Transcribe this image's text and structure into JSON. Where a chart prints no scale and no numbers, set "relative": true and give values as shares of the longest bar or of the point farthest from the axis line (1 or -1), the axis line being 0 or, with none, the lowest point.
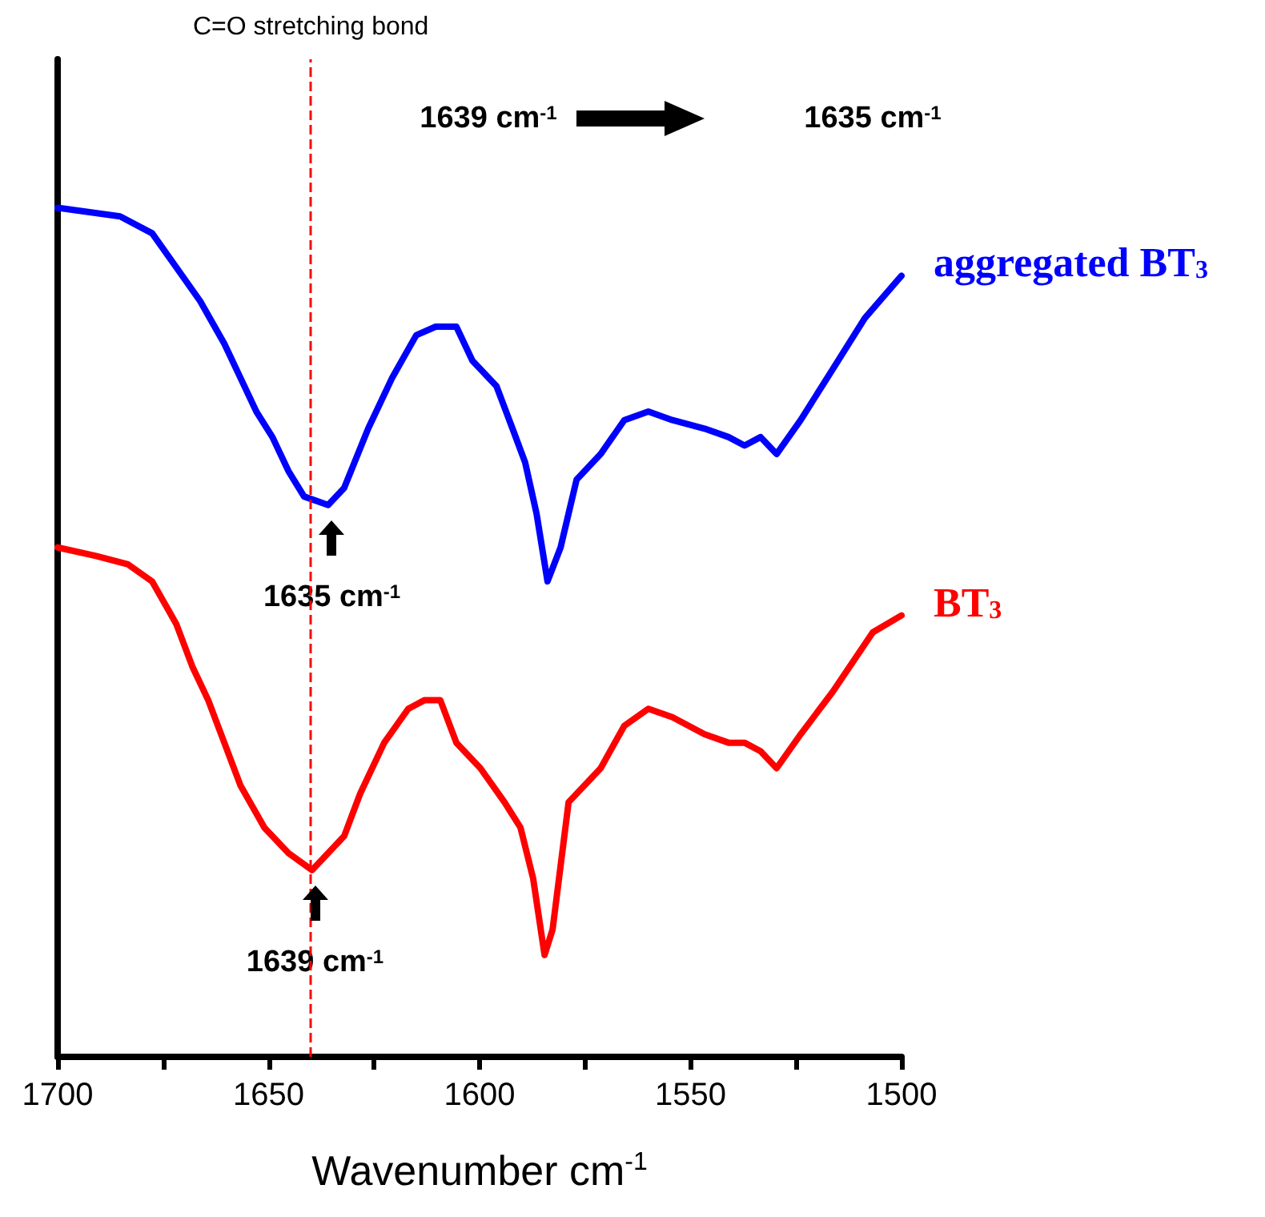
{
  "chart_data": {
    "type": "line",
    "relative": true,
    "xlabel": "Wavenumber cm$^{-1}$",
    "xlim": [
      1700,
      1500
    ],
    "xticks": [
      1700,
      {
        "value": 1675,
        "label": null
      },
      1650,
      {
        "value": 1625,
        "label": null
      },
      1600,
      {
        "value": 1575,
        "label": null
      },
      1550,
      {
        "value": 1525,
        "label": null
      },
      1500
    ],
    "x": [
      1700,
      1685.2,
      1677.6,
      1671.9,
      1666.2,
      1660.5,
      1656.7,
      1652.9,
      1649.1,
      1645.3,
      1641.6,
      1635.9,
      1632.1,
      1626.4,
      1620.7,
      1615.0,
      1610.4,
      1605.5,
      1601.7,
      1596.0,
      1592.2,
      1589.2,
      1586.5,
      1583.9,
      1580.8,
      1577.0,
      1571.3,
      1565.7,
      1560.0,
      1554.3,
      1546.7,
      1541.0,
      1537.2,
      1533.4,
      1529.6,
      1523.9,
      1516.3,
      1508.7,
      1500
    ],
    "series": [
      {
        "name": "aggregated BT$_{3}$",
        "color": "#0000ff",
        "values": [
          1.0,
          0.99,
          0.97,
          0.93,
          0.89,
          0.84,
          0.8,
          0.76,
          0.73,
          0.69,
          0.66,
          0.65,
          0.67,
          0.74,
          0.8,
          0.85,
          0.86,
          0.86,
          0.82,
          0.79,
          0.74,
          0.7,
          0.64,
          0.56,
          0.6,
          0.68,
          0.71,
          0.75,
          0.76,
          0.75,
          0.74,
          0.73,
          0.72,
          0.73,
          0.71,
          0.75,
          0.81,
          0.87,
          0.92
        ]
      },
      {
        "name": "BT$_{3}$",
        "color": "#ff0000",
        "x": [
          1700,
          1690.9,
          1683.3,
          1677.6,
          1671.9,
          1668.1,
          1664.3,
          1660.5,
          1656.7,
          1651.0,
          1645.3,
          1639.7,
          1635.9,
          1632.1,
          1628.3,
          1622.6,
          1616.9,
          1613.1,
          1609.3,
          1605.5,
          1599.8,
          1594.1,
          1590.3,
          1587.3,
          1584.6,
          1582.7,
          1578.9,
          1575.1,
          1571.3,
          1565.7,
          1560.0,
          1554.3,
          1546.7,
          1541.0,
          1537.2,
          1533.4,
          1529.6,
          1523.9,
          1516.3,
          1506.8,
          1500
        ],
        "values": [
          0.6,
          0.59,
          0.58,
          0.56,
          0.51,
          0.46,
          0.42,
          0.37,
          0.32,
          0.27,
          0.24,
          0.22,
          0.24,
          0.26,
          0.31,
          0.37,
          0.41,
          0.42,
          0.42,
          0.37,
          0.34,
          0.3,
          0.27,
          0.21,
          0.12,
          0.15,
          0.3,
          0.32,
          0.34,
          0.39,
          0.41,
          0.4,
          0.38,
          0.37,
          0.37,
          0.36,
          0.34,
          0.38,
          0.43,
          0.5,
          0.52
        ]
      }
    ],
    "ref_lines": [
      {
        "axis": "x",
        "value": 1640,
        "label": "C=O stretching bond",
        "color": "#ff0000",
        "line_style": "dashed"
      }
    ],
    "annotations": [
      {
        "text": "1635 cm$^{-1}$",
        "x": 1635,
        "y": 0.65
      },
      {
        "text": "1639 cm$^{-1}$",
        "x": 1639,
        "y": 0.22
      },
      "1639 cm$^{-1}$",
      "1635 cm$^{-1}$"
    ]
  }
}
